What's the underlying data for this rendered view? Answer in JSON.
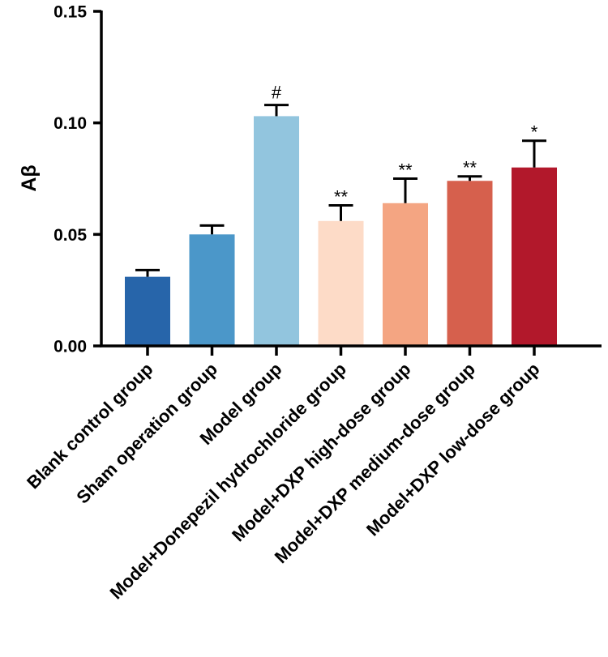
{
  "chart_data": {
    "type": "bar",
    "title": "",
    "xlabel": "",
    "ylabel": "Aβ",
    "ylim": [
      0,
      0.15
    ],
    "yticks": [
      0.0,
      0.05,
      0.1,
      0.15
    ],
    "ytick_labels": [
      "0.00",
      "0.05",
      "0.10",
      "0.15"
    ],
    "grid": false,
    "categories": [
      "Blank control group",
      "Sham operation group",
      "Model group",
      "Model+Donepezil hydrochloride group",
      "Model+DXP high-dose group",
      "Model+DXP medium-dose group",
      "Model+DXP low-dose group"
    ],
    "values": [
      0.031,
      0.05,
      0.103,
      0.056,
      0.064,
      0.074,
      0.08
    ],
    "errors": [
      0.003,
      0.004,
      0.005,
      0.007,
      0.011,
      0.002,
      0.012
    ],
    "significance": [
      "",
      "",
      "#",
      "**",
      "**",
      "**",
      "*"
    ],
    "colors": [
      "#2765aa",
      "#4b97c9",
      "#92c5de",
      "#fddbc7",
      "#f4a582",
      "#d6604d",
      "#b2182b"
    ]
  }
}
